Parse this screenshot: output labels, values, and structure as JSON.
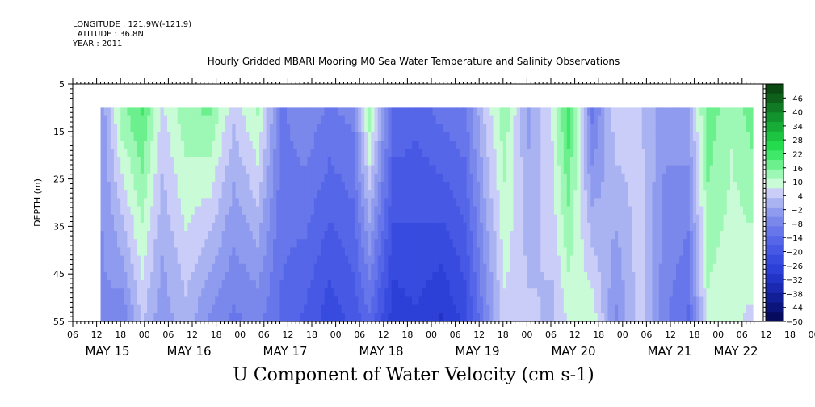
{
  "header": {
    "longitude": "LONGITUDE : 121.9W(-121.9)",
    "latitude": "LATITUDE : 36.8N",
    "year": "YEAR : 2011"
  },
  "chart_data": {
    "type": "heatmap",
    "title": "Hourly Gridded MBARI Mooring M0 Sea Water Temperature and Salinity Observations",
    "subtitle": "U Component of Water Velocity (cm s-1)",
    "ylabel": "DEPTH (m)",
    "y_ticks": [
      5,
      15,
      25,
      35,
      45,
      55
    ],
    "ylim": [
      5,
      55
    ],
    "y_reversed": true,
    "x_hour_ticks": [
      "06",
      "12",
      "18",
      "00",
      "06",
      "12",
      "18",
      "00",
      "06",
      "12",
      "18",
      "00",
      "06",
      "12",
      "18",
      "00",
      "06",
      "12",
      "18",
      "00",
      "06",
      "12",
      "18",
      "00",
      "06",
      "12",
      "18",
      "00",
      "06",
      "12",
      "18",
      "00",
      "06"
    ],
    "x_day_labels": [
      "MAY 15",
      "MAY 16",
      "MAY 17",
      "MAY 18",
      "MAY 19",
      "MAY 20",
      "MAY 21",
      "MAY 22"
    ],
    "data_depth_range_m": [
      10,
      55
    ],
    "colorbar": {
      "labels": [
        46,
        40,
        34,
        28,
        22,
        16,
        10,
        4,
        -2,
        -8,
        -14,
        -20,
        -26,
        -32,
        -38,
        -44,
        -50
      ],
      "range": [
        -50,
        52
      ],
      "colors": [
        "#0a4a12",
        "#0d5f1a",
        "#107a24",
        "#13932d",
        "#17ac36",
        "#1dc441",
        "#24da4d",
        "#3fe869",
        "#6cf08e",
        "#9df7b5",
        "#c8fbd6",
        "#c9cdf8",
        "#aab3f2",
        "#8f9bee",
        "#7a88ec",
        "#6776ea",
        "#5566e8",
        "#4658e4",
        "#384bdf",
        "#2c3fd6",
        "#2234c6",
        "#1a29b0",
        "#121e96",
        "#0b147a",
        "#060b5e"
      ]
    },
    "column_profiles": [
      {
        "time": "May 14 13:00",
        "surface": -4,
        "bottom": -6
      },
      {
        "time": "May 14 18:00",
        "surface": 14,
        "bottom": -8
      },
      {
        "time": "May 14 23:00",
        "surface": 20,
        "bottom": 4
      },
      {
        "time": "May 15 04:00",
        "surface": 6,
        "bottom": -4
      },
      {
        "time": "May 15 10:00",
        "surface": 14,
        "bottom": 2
      },
      {
        "time": "May 15 16:00",
        "surface": 16,
        "bottom": -6
      },
      {
        "time": "May 15 22:00",
        "surface": 4,
        "bottom": -10
      },
      {
        "time": "May 16 04:00",
        "surface": 12,
        "bottom": -8
      },
      {
        "time": "May 16 10:00",
        "surface": -10,
        "bottom": -14
      },
      {
        "time": "May 16 16:00",
        "surface": -6,
        "bottom": -18
      },
      {
        "time": "May 16 22:00",
        "surface": -10,
        "bottom": -24
      },
      {
        "time": "May 17 04:00",
        "surface": -8,
        "bottom": -20
      },
      {
        "time": "May 17 08:00",
        "surface": 14,
        "bottom": -14
      },
      {
        "time": "May 17 14:00",
        "surface": -14,
        "bottom": -28
      },
      {
        "time": "May 17 20:00",
        "surface": -16,
        "bottom": -26
      },
      {
        "time": "May 18 02:00",
        "surface": -12,
        "bottom": -30
      },
      {
        "time": "May 18 08:00",
        "surface": -10,
        "bottom": -24
      },
      {
        "time": "May 18 13:00",
        "surface": 4,
        "bottom": -8
      },
      {
        "time": "May 18 18:00",
        "surface": 14,
        "bottom": 6
      },
      {
        "time": "May 19 00:00",
        "surface": -2,
        "bottom": 4
      },
      {
        "time": "May 19 06:00",
        "surface": 8,
        "bottom": 2
      },
      {
        "time": "May 19 10:00",
        "surface": 22,
        "bottom": 8
      },
      {
        "time": "May 19 16:00",
        "surface": -10,
        "bottom": 10
      },
      {
        "time": "May 19 22:00",
        "surface": 6,
        "bottom": -6
      },
      {
        "time": "May 20 04:00",
        "surface": 4,
        "bottom": 6
      },
      {
        "time": "May 20 10:00",
        "surface": -4,
        "bottom": -8
      },
      {
        "time": "May 20 16:00",
        "surface": -2,
        "bottom": -14
      },
      {
        "time": "May 20 21:00",
        "surface": 18,
        "bottom": 10
      },
      {
        "time": "May 21 03:00",
        "surface": 12,
        "bottom": 8
      },
      {
        "time": "May 21 09:00",
        "surface": 18,
        "bottom": 6
      },
      {
        "time": "May 21 15:00",
        "surface": 2,
        "bottom": -8
      },
      {
        "time": "May 21 21:00",
        "surface": 16,
        "bottom": -6
      },
      {
        "time": "May 22 03:00",
        "surface": 8,
        "bottom": -4
      },
      {
        "time": "May 22 08:00",
        "surface": 16,
        "bottom": 10
      }
    ]
  }
}
